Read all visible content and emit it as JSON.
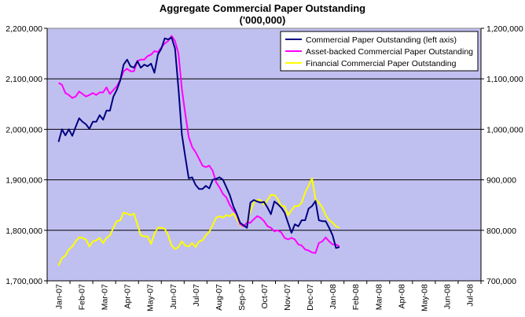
{
  "chart_data": {
    "type": "line",
    "title": "Aggregate Commercial Paper Outstanding",
    "subtitle": "('000,000)",
    "xlabel": "",
    "ylabel": "",
    "y_left": {
      "min": 1700000,
      "max": 2200000,
      "ticks": [
        "1,700,000",
        "1,800,000",
        "1,900,000",
        "2,000,000",
        "2,100,000",
        "2,200,000"
      ],
      "tick_values": [
        1700000,
        1800000,
        1900000,
        2000000,
        2100000,
        2200000
      ]
    },
    "y_right": {
      "min": 700000,
      "max": 1200000,
      "ticks": [
        "700,000",
        "800,000",
        "900,000",
        "1,000,000",
        "1,100,000",
        "1,200,000"
      ],
      "tick_values": [
        700000,
        800000,
        900000,
        1000000,
        1100000,
        1200000
      ]
    },
    "x_ticks": [
      "Jan-07",
      "Feb-07",
      "Mar-07",
      "Apr-07",
      "May-07",
      "Jun-07",
      "Jul-07",
      "Aug-07",
      "Sep-07",
      "Oct-07",
      "Nov-07",
      "Dec-07",
      "Jan-08",
      "Feb-08",
      "Mar-08",
      "Apr-08",
      "May-08",
      "Jun-08",
      "Jul-08"
    ],
    "grid": "horizontal",
    "background": "#c0c0f0",
    "legend_position": "top-right",
    "series": [
      {
        "name": "Commercial Paper Outstanding (left axis)",
        "axis": "left",
        "color": "#000080",
        "points": [
          [
            0,
            1975000
          ],
          [
            0.15,
            2000000
          ],
          [
            0.3,
            1988000
          ],
          [
            0.45,
            2000000
          ],
          [
            0.6,
            1987000
          ],
          [
            0.75,
            2005000
          ],
          [
            0.9,
            2022000
          ],
          [
            1.05,
            2015000
          ],
          [
            1.2,
            2010000
          ],
          [
            1.35,
            2001000
          ],
          [
            1.5,
            2015000
          ],
          [
            1.65,
            2015000
          ],
          [
            1.8,
            2028000
          ],
          [
            1.95,
            2019000
          ],
          [
            2.1,
            2037000
          ],
          [
            2.25,
            2037000
          ],
          [
            2.4,
            2065000
          ],
          [
            2.55,
            2078000
          ],
          [
            2.7,
            2097000
          ],
          [
            2.85,
            2128000
          ],
          [
            3.0,
            2138000
          ],
          [
            3.15,
            2125000
          ],
          [
            3.3,
            2122000
          ],
          [
            3.45,
            2135000
          ],
          [
            3.6,
            2122000
          ],
          [
            3.75,
            2128000
          ],
          [
            3.9,
            2125000
          ],
          [
            4.05,
            2130000
          ],
          [
            4.2,
            2112000
          ],
          [
            4.35,
            2148000
          ],
          [
            4.5,
            2160000
          ],
          [
            4.65,
            2180000
          ],
          [
            4.8,
            2178000
          ],
          [
            4.95,
            2182000
          ],
          [
            5.1,
            2160000
          ],
          [
            5.25,
            2080000
          ],
          [
            5.4,
            1990000
          ],
          [
            5.55,
            1945000
          ],
          [
            5.7,
            1903000
          ],
          [
            5.85,
            1905000
          ],
          [
            6.0,
            1890000
          ],
          [
            6.15,
            1882000
          ],
          [
            6.3,
            1882000
          ],
          [
            6.45,
            1888000
          ],
          [
            6.6,
            1883000
          ],
          [
            6.75,
            1900000
          ],
          [
            6.9,
            1902000
          ],
          [
            7.05,
            1905000
          ],
          [
            7.2,
            1900000
          ],
          [
            7.35,
            1885000
          ],
          [
            7.5,
            1870000
          ],
          [
            7.65,
            1848000
          ],
          [
            7.8,
            1833000
          ],
          [
            7.95,
            1815000
          ],
          [
            8.1,
            1810000
          ],
          [
            8.25,
            1805000
          ],
          [
            8.4,
            1855000
          ],
          [
            8.55,
            1860000
          ],
          [
            8.7,
            1857000
          ],
          [
            8.85,
            1855000
          ],
          [
            9.0,
            1856000
          ],
          [
            9.15,
            1845000
          ],
          [
            9.3,
            1832000
          ],
          [
            9.45,
            1857000
          ],
          [
            9.6,
            1852000
          ],
          [
            9.75,
            1845000
          ],
          [
            9.9,
            1835000
          ],
          [
            10.05,
            1815000
          ],
          [
            10.2,
            1795000
          ],
          [
            10.35,
            1812000
          ],
          [
            10.5,
            1808000
          ],
          [
            10.65,
            1820000
          ],
          [
            10.8,
            1820000
          ],
          [
            10.95,
            1843000
          ],
          [
            11.1,
            1848000
          ],
          [
            11.25,
            1858000
          ],
          [
            11.4,
            1820000
          ],
          [
            11.55,
            1818000
          ],
          [
            11.7,
            1818000
          ],
          [
            11.85,
            1805000
          ],
          [
            12.0,
            1790000
          ],
          [
            12.15,
            1765000
          ],
          [
            12.3,
            1767000
          ]
        ]
      },
      {
        "name": "Asset-backed Commercial Paper Outstanding",
        "axis": "right",
        "color": "#ff00ff",
        "points": [
          [
            0,
            1092000
          ],
          [
            0.15,
            1088000
          ],
          [
            0.3,
            1072000
          ],
          [
            0.45,
            1068000
          ],
          [
            0.6,
            1062000
          ],
          [
            0.75,
            1065000
          ],
          [
            0.9,
            1075000
          ],
          [
            1.05,
            1070000
          ],
          [
            1.2,
            1065000
          ],
          [
            1.35,
            1068000
          ],
          [
            1.5,
            1072000
          ],
          [
            1.65,
            1068000
          ],
          [
            1.8,
            1073000
          ],
          [
            1.95,
            1073000
          ],
          [
            2.1,
            1083000
          ],
          [
            2.25,
            1070000
          ],
          [
            2.4,
            1078000
          ],
          [
            2.55,
            1085000
          ],
          [
            2.7,
            1098000
          ],
          [
            2.85,
            1115000
          ],
          [
            3.0,
            1120000
          ],
          [
            3.15,
            1115000
          ],
          [
            3.3,
            1115000
          ],
          [
            3.45,
            1135000
          ],
          [
            3.6,
            1138000
          ],
          [
            3.75,
            1138000
          ],
          [
            3.9,
            1145000
          ],
          [
            4.05,
            1148000
          ],
          [
            4.2,
            1155000
          ],
          [
            4.35,
            1153000
          ],
          [
            4.5,
            1162000
          ],
          [
            4.65,
            1170000
          ],
          [
            4.8,
            1175000
          ],
          [
            4.95,
            1185000
          ],
          [
            5.1,
            1175000
          ],
          [
            5.25,
            1150000
          ],
          [
            5.4,
            1080000
          ],
          [
            5.55,
            1030000
          ],
          [
            5.7,
            985000
          ],
          [
            5.85,
            965000
          ],
          [
            6.0,
            955000
          ],
          [
            6.15,
            942000
          ],
          [
            6.3,
            928000
          ],
          [
            6.45,
            925000
          ],
          [
            6.6,
            928000
          ],
          [
            6.75,
            918000
          ],
          [
            6.9,
            895000
          ],
          [
            7.05,
            885000
          ],
          [
            7.2,
            872000
          ],
          [
            7.35,
            865000
          ],
          [
            7.5,
            850000
          ],
          [
            7.65,
            840000
          ],
          [
            7.8,
            832000
          ],
          [
            7.95,
            812000
          ],
          [
            8.1,
            808000
          ],
          [
            8.25,
            815000
          ],
          [
            8.4,
            815000
          ],
          [
            8.55,
            822000
          ],
          [
            8.7,
            828000
          ],
          [
            8.85,
            825000
          ],
          [
            9.0,
            818000
          ],
          [
            9.15,
            808000
          ],
          [
            9.3,
            805000
          ],
          [
            9.45,
            798000
          ],
          [
            9.6,
            800000
          ],
          [
            9.75,
            796000
          ],
          [
            9.9,
            785000
          ],
          [
            10.05,
            782000
          ],
          [
            10.2,
            785000
          ],
          [
            10.35,
            782000
          ],
          [
            10.5,
            772000
          ],
          [
            10.65,
            770000
          ],
          [
            10.8,
            762000
          ],
          [
            10.95,
            760000
          ],
          [
            11.1,
            756000
          ],
          [
            11.25,
            755000
          ],
          [
            11.4,
            775000
          ],
          [
            11.55,
            778000
          ],
          [
            11.7,
            786000
          ],
          [
            11.85,
            778000
          ],
          [
            12.0,
            772000
          ],
          [
            12.15,
            772000
          ],
          [
            12.3,
            768000
          ]
        ]
      },
      {
        "name": "Financial Commercial Paper Outstanding",
        "axis": "right",
        "color": "#ffff00",
        "points": [
          [
            0,
            730000
          ],
          [
            0.15,
            745000
          ],
          [
            0.3,
            750000
          ],
          [
            0.45,
            762000
          ],
          [
            0.6,
            768000
          ],
          [
            0.75,
            778000
          ],
          [
            0.9,
            786000
          ],
          [
            1.05,
            785000
          ],
          [
            1.2,
            782000
          ],
          [
            1.35,
            768000
          ],
          [
            1.5,
            778000
          ],
          [
            1.65,
            780000
          ],
          [
            1.8,
            785000
          ],
          [
            1.95,
            775000
          ],
          [
            2.1,
            785000
          ],
          [
            2.25,
            790000
          ],
          [
            2.4,
            805000
          ],
          [
            2.55,
            818000
          ],
          [
            2.7,
            820000
          ],
          [
            2.85,
            835000
          ],
          [
            3.0,
            833000
          ],
          [
            3.15,
            830000
          ],
          [
            3.3,
            833000
          ],
          [
            3.45,
            812000
          ],
          [
            3.6,
            790000
          ],
          [
            3.75,
            788000
          ],
          [
            3.9,
            788000
          ],
          [
            4.05,
            773000
          ],
          [
            4.2,
            793000
          ],
          [
            4.35,
            805000
          ],
          [
            4.5,
            805000
          ],
          [
            4.65,
            803000
          ],
          [
            4.8,
            790000
          ],
          [
            4.95,
            770000
          ],
          [
            5.1,
            763000
          ],
          [
            5.25,
            767000
          ],
          [
            5.4,
            778000
          ],
          [
            5.55,
            770000
          ],
          [
            5.7,
            768000
          ],
          [
            5.85,
            775000
          ],
          [
            6.0,
            767000
          ],
          [
            6.15,
            778000
          ],
          [
            6.3,
            780000
          ],
          [
            6.45,
            790000
          ],
          [
            6.6,
            797000
          ],
          [
            6.75,
            810000
          ],
          [
            6.9,
            825000
          ],
          [
            7.05,
            828000
          ],
          [
            7.2,
            825000
          ],
          [
            7.35,
            830000
          ],
          [
            7.5,
            828000
          ],
          [
            7.65,
            833000
          ],
          [
            7.8,
            823000
          ],
          [
            7.95,
            810000
          ],
          [
            8.1,
            808000
          ],
          [
            8.25,
            815000
          ],
          [
            8.4,
            838000
          ],
          [
            8.55,
            855000
          ],
          [
            8.7,
            860000
          ],
          [
            8.85,
            860000
          ],
          [
            9.0,
            850000
          ],
          [
            9.15,
            860000
          ],
          [
            9.3,
            870000
          ],
          [
            9.45,
            870000
          ],
          [
            9.6,
            862000
          ],
          [
            9.75,
            848000
          ],
          [
            9.9,
            848000
          ],
          [
            10.05,
            830000
          ],
          [
            10.2,
            840000
          ],
          [
            10.35,
            848000
          ],
          [
            10.5,
            848000
          ],
          [
            10.65,
            855000
          ],
          [
            10.8,
            875000
          ],
          [
            10.95,
            888000
          ],
          [
            11.1,
            903000
          ],
          [
            11.25,
            862000
          ],
          [
            11.4,
            855000
          ],
          [
            11.55,
            845000
          ],
          [
            11.7,
            830000
          ],
          [
            11.85,
            820000
          ],
          [
            12.0,
            815000
          ],
          [
            12.15,
            808000
          ],
          [
            12.3,
            805000
          ]
        ]
      }
    ]
  }
}
